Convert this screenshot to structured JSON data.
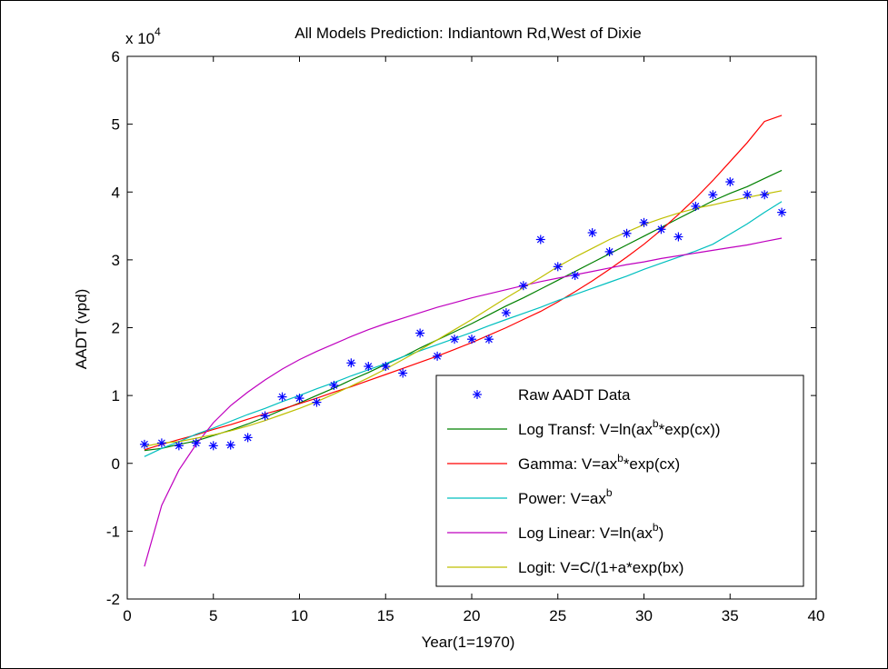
{
  "chart_data": {
    "type": "line",
    "title": "All Models Prediction: Indiantown Rd,West of Dixie",
    "xlabel": "Year(1=1970)",
    "ylabel": "AADT (vpd)",
    "y_multiplier": {
      "base": "x 10",
      "exponent": "4"
    },
    "xlim": [
      0,
      40
    ],
    "ylim": [
      -2,
      6
    ],
    "xticks": [
      "0",
      "5",
      "10",
      "15",
      "20",
      "25",
      "30",
      "35",
      "40"
    ],
    "yticks": [
      "-2",
      "-1",
      "0",
      "1",
      "2",
      "3",
      "4",
      "5",
      "6"
    ],
    "grid": false,
    "legend_position": "bottom-right",
    "scatter": {
      "name": "Raw AADT Data",
      "color": "#0000ff",
      "marker": "*",
      "x": [
        1,
        2,
        3,
        4,
        5,
        6,
        7,
        8,
        9,
        10,
        11,
        12,
        13,
        14,
        15,
        16,
        17,
        18,
        19,
        20,
        21,
        22,
        23,
        24,
        25,
        26,
        27,
        28,
        29,
        30,
        31,
        32,
        33,
        34,
        35,
        36,
        37,
        38
      ],
      "y": [
        0.28,
        0.3,
        0.26,
        0.3,
        0.26,
        0.27,
        0.38,
        0.7,
        0.98,
        0.96,
        0.9,
        1.15,
        1.48,
        1.43,
        1.43,
        1.33,
        1.92,
        1.58,
        1.83,
        1.83,
        1.83,
        2.22,
        2.62,
        3.3,
        2.9,
        2.77,
        3.4,
        3.12,
        3.39,
        3.55,
        3.45,
        3.34,
        3.79,
        3.96,
        4.15,
        3.96,
        3.96,
        3.7
      ]
    },
    "series": [
      {
        "name_parts": [
          [
            "Log Transf: V=ln(ax",
            ""
          ],
          [
            "b",
            "sup"
          ],
          [
            "*exp(cx))",
            ""
          ]
        ],
        "color": "#008000",
        "x": [
          1,
          2,
          3,
          4,
          5,
          6,
          7,
          8,
          9,
          10,
          11,
          12,
          13,
          14,
          15,
          16,
          17,
          18,
          19,
          20,
          21,
          22,
          23,
          24,
          25,
          26,
          27,
          28,
          29,
          30,
          31,
          32,
          33,
          34,
          35,
          36,
          37,
          38
        ],
        "y": [
          0.19,
          0.22,
          0.28,
          0.33,
          0.41,
          0.49,
          0.58,
          0.68,
          0.79,
          0.89,
          1.0,
          1.11,
          1.23,
          1.34,
          1.46,
          1.57,
          1.7,
          1.82,
          1.94,
          2.06,
          2.19,
          2.32,
          2.44,
          2.57,
          2.7,
          2.83,
          2.96,
          3.09,
          3.22,
          3.35,
          3.48,
          3.61,
          3.74,
          3.87,
          3.98,
          4.08,
          4.2,
          4.32
        ]
      },
      {
        "name_parts": [
          [
            "Gamma: V=ax",
            ""
          ],
          [
            "b",
            "sup"
          ],
          [
            "*exp(cx)",
            ""
          ]
        ],
        "color": "#ff0000",
        "x": [
          1,
          2,
          3,
          4,
          5,
          6,
          7,
          8,
          9,
          10,
          11,
          12,
          13,
          14,
          15,
          16,
          17,
          18,
          19,
          20,
          21,
          22,
          23,
          24,
          25,
          26,
          27,
          28,
          29,
          30,
          31,
          32,
          33,
          34,
          35,
          36,
          37,
          38
        ],
        "y": [
          0.2,
          0.28,
          0.35,
          0.42,
          0.5,
          0.57,
          0.65,
          0.73,
          0.8,
          0.88,
          0.96,
          1.05,
          1.13,
          1.22,
          1.31,
          1.4,
          1.49,
          1.58,
          1.68,
          1.78,
          1.89,
          2.0,
          2.12,
          2.24,
          2.38,
          2.53,
          2.69,
          2.86,
          3.04,
          3.23,
          3.44,
          3.67,
          3.91,
          4.17,
          4.45,
          4.73,
          5.04,
          5.13
        ]
      },
      {
        "name_parts": [
          [
            "Power: V=ax",
            ""
          ],
          [
            "b",
            "sup"
          ]
        ],
        "color": "#00bfbf",
        "x": [
          1,
          2,
          3,
          4,
          5,
          6,
          7,
          8,
          9,
          10,
          11,
          12,
          13,
          14,
          15,
          16,
          17,
          18,
          19,
          20,
          21,
          22,
          23,
          24,
          25,
          26,
          27,
          28,
          29,
          30,
          31,
          32,
          33,
          34,
          35,
          36,
          37,
          38
        ],
        "y": [
          0.1,
          0.22,
          0.32,
          0.43,
          0.52,
          0.62,
          0.72,
          0.81,
          0.91,
          1.0,
          1.1,
          1.19,
          1.29,
          1.38,
          1.47,
          1.57,
          1.66,
          1.75,
          1.84,
          1.93,
          2.03,
          2.12,
          2.21,
          2.3,
          2.4,
          2.49,
          2.58,
          2.67,
          2.76,
          2.86,
          2.95,
          3.04,
          3.13,
          3.23,
          3.38,
          3.53,
          3.7,
          3.86
        ]
      },
      {
        "name_parts": [
          [
            "Log Linear: V=ln(ax",
            ""
          ],
          [
            "b",
            "sup"
          ],
          [
            ")",
            ""
          ]
        ],
        "color": "#bf00bf",
        "x": [
          1,
          2,
          3,
          4,
          5,
          6,
          7,
          8,
          9,
          10,
          11,
          12,
          13,
          14,
          15,
          16,
          17,
          18,
          19,
          20,
          21,
          22,
          23,
          24,
          25,
          26,
          27,
          28,
          29,
          30,
          31,
          32,
          33,
          34,
          35,
          36,
          37,
          38
        ],
        "y": [
          -1.52,
          -0.62,
          -0.1,
          0.28,
          0.6,
          0.85,
          1.05,
          1.23,
          1.39,
          1.53,
          1.65,
          1.76,
          1.87,
          1.97,
          2.06,
          2.14,
          2.22,
          2.3,
          2.37,
          2.44,
          2.5,
          2.56,
          2.62,
          2.68,
          2.73,
          2.78,
          2.83,
          2.88,
          2.93,
          2.97,
          3.02,
          3.06,
          3.1,
          3.14,
          3.18,
          3.22,
          3.27,
          3.32
        ]
      },
      {
        "name_parts": [
          [
            "Logit: V=C/(1+a*exp(bx)",
            ""
          ]
        ],
        "color": "#bfbf00",
        "x": [
          1,
          2,
          3,
          4,
          5,
          6,
          7,
          8,
          9,
          10,
          11,
          12,
          13,
          14,
          15,
          16,
          17,
          18,
          19,
          20,
          21,
          22,
          23,
          24,
          25,
          26,
          27,
          28,
          29,
          30,
          31,
          32,
          33,
          34,
          35,
          36,
          37,
          38
        ],
        "y": [
          0.25,
          0.3,
          0.32,
          0.37,
          0.42,
          0.48,
          0.55,
          0.63,
          0.72,
          0.81,
          0.91,
          1.02,
          1.14,
          1.26,
          1.39,
          1.53,
          1.67,
          1.82,
          1.97,
          2.12,
          2.28,
          2.44,
          2.59,
          2.74,
          2.9,
          3.04,
          3.17,
          3.3,
          3.41,
          3.52,
          3.61,
          3.69,
          3.76,
          3.81,
          3.87,
          3.92,
          3.97,
          4.02
        ]
      }
    ]
  }
}
